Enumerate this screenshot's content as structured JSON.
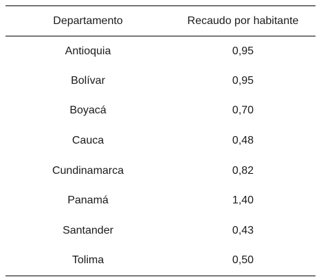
{
  "table": {
    "headers": [
      "Departamento",
      "Recaudo por habitante"
    ],
    "rows": [
      [
        "Antioquia",
        "0,95"
      ],
      [
        "Bolívar",
        "0,95"
      ],
      [
        "Boyacá",
        "0,70"
      ],
      [
        "Cauca",
        "0,48"
      ],
      [
        "Cundinamarca",
        "0,82"
      ],
      [
        "Panamá",
        "1,40"
      ],
      [
        "Santander",
        "0,43"
      ],
      [
        "Tolima",
        "0,50"
      ]
    ]
  }
}
